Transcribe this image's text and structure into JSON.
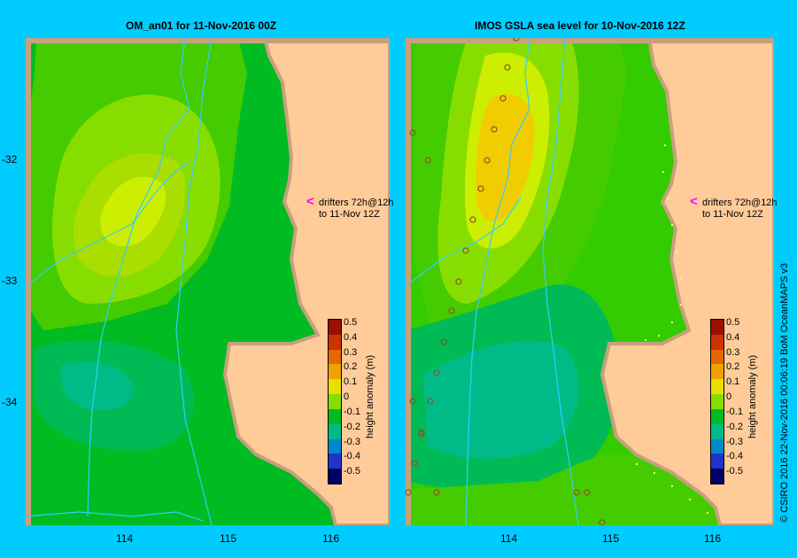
{
  "panels": [
    {
      "title": "OM_an01  for 11-Nov-2016 00Z"
    },
    {
      "title": "IMOS GSLA sea level  for 10-Nov-2016 12Z"
    }
  ],
  "axes": {
    "y_ticks": [
      "-32",
      "-33",
      "-34"
    ],
    "x_ticks": [
      "114",
      "115",
      "116"
    ]
  },
  "drifter_note": {
    "line1": "drifters 72h@12h",
    "line2": "to 11-Nov 12Z",
    "arrow_color": "#ff00ff"
  },
  "colorbar": {
    "title": "height anomaly (m)",
    "labels": [
      "0.5",
      "0.4",
      "0.3",
      "0.2",
      "0.1",
      "0",
      "-0.1",
      "-0.2",
      "-0.3",
      "-0.4",
      "-0.5"
    ],
    "colors": [
      "#991100",
      "#cc3300",
      "#e66600",
      "#f0a000",
      "#e8e000",
      "#88dd00",
      "#00bb22",
      "#00bb88",
      "#0088cc",
      "#2233cc",
      "#000066"
    ]
  },
  "credit": "© CSIRO 2016   22-Nov-2016 00:06:19 BoM OceanMAPS v3",
  "colors": {
    "land": "#ffcc99",
    "coast": "#c8a07e",
    "background": "#00ccff",
    "drifter_track": "#33ccff"
  }
}
